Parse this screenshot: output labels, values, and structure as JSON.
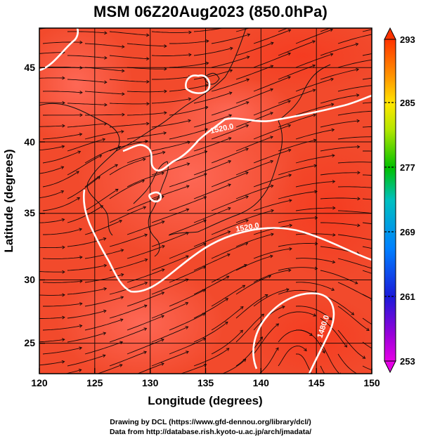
{
  "title": "MSM 06Z20Aug2023 (850.0hPa)",
  "credits": {
    "line1": "Drawing by DCL (https://www.gfd-dennou.org/library/dcl/)",
    "line2": "Data from http://database.rish.kyoto-u.ac.jp/arch/jmadata/"
  },
  "chart_data": {
    "type": "heatmap",
    "title": "MSM 06Z20Aug2023 (850.0hPa)",
    "xlabel": "Longitude (degrees)",
    "ylabel": "Latitude  (degrees)",
    "xlim": [
      120,
      150
    ],
    "ylim": [
      22.4,
      47.6
    ],
    "x_ticks": [
      "120",
      "125",
      "130",
      "135",
      "140",
      "145",
      "150"
    ],
    "y_ticks": [
      "25",
      "30",
      "35",
      "40",
      "45"
    ],
    "grid": true,
    "colorbar": {
      "ticks": [
        "293",
        "285",
        "277",
        "269",
        "261",
        "253"
      ],
      "min": 253,
      "max": 293,
      "placement": "right"
    },
    "contour_labels": [
      "1520.0",
      "1520.0",
      "1480.0"
    ],
    "overlays": [
      "temperature shading",
      "geopotential height contours (white)",
      "wind streamlines",
      "coastlines"
    ]
  }
}
